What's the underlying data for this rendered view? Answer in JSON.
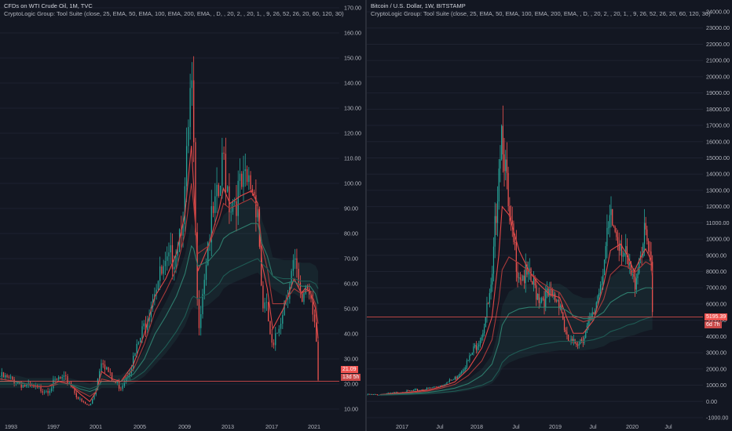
{
  "chart_data": [
    {
      "type": "candlestick",
      "symbol_header": "CFDs on WTI Crude Oil, 1M, TVC",
      "indicator_header": "CryptoLogic Group: Tool Suite (close, 25, EMA, 50, EMA, 100, EMA, 200, EMA, , D, , 20, 2, , 20, 1, , 9, 26, 52, 26, 20, 60, 120, 30)",
      "ylim": [
        5,
        170
      ],
      "y_ticks": [
        "170.00",
        "160.00",
        "150.00",
        "140.00",
        "130.00",
        "120.00",
        "110.00",
        "100.00",
        "90.00",
        "80.00",
        "70.00",
        "60.00",
        "50.00",
        "40.00",
        "30.00",
        "20.00",
        "10.00"
      ],
      "x_ticks": [
        "1993",
        "1997",
        "2001",
        "2005",
        "2009",
        "2013",
        "2017",
        "2021"
      ],
      "last_price": "21.09",
      "countdown": "13d 5h",
      "x": [
        1990.5,
        1992,
        1993,
        1994,
        1995,
        1996,
        1997,
        1998,
        1998.9,
        1999.5,
        2000,
        2001,
        2001.8,
        2003,
        2004,
        2005,
        2006,
        2007,
        2007.8,
        2008.4,
        2008.6,
        2009,
        2010,
        2011,
        2011.4,
        2012,
        2013,
        2014,
        2014.6,
        2015,
        2015.5,
        2016,
        2017,
        2018,
        2018.7,
        2019,
        2019.5,
        2020,
        2020.25
      ],
      "close": [
        23,
        21,
        19,
        18,
        18,
        22,
        21,
        13,
        11,
        19,
        31,
        21,
        19,
        30,
        43,
        60,
        65,
        75,
        95,
        140,
        110,
        42,
        79,
        95,
        110,
        93,
        97,
        100,
        92,
        53,
        48,
        32,
        52,
        68,
        51,
        60,
        58,
        45,
        21
      ],
      "series": [
        {
          "name": "EMA 25",
          "color": "#e04848",
          "values": [
            22,
            21,
            20,
            19,
            19,
            21,
            20,
            16,
            13,
            17,
            25,
            22,
            21,
            28,
            40,
            55,
            62,
            72,
            88,
            115,
            100,
            65,
            75,
            90,
            98,
            92,
            95,
            97,
            92,
            68,
            58,
            42,
            50,
            62,
            56,
            58,
            57,
            50,
            38
          ]
        },
        {
          "name": "EMA 50",
          "color": "#a83a3a",
          "values": [
            22,
            21,
            20,
            19,
            19,
            20,
            20,
            17,
            15,
            17,
            22,
            21,
            21,
            26,
            36,
            49,
            57,
            66,
            80,
            100,
            92,
            72,
            75,
            86,
            92,
            90,
            92,
            94,
            91,
            75,
            66,
            52,
            52,
            58,
            56,
            57,
            57,
            52,
            44
          ]
        },
        {
          "name": "EMA 100",
          "color": "#2e7d6d",
          "values": [
            21,
            21,
            20,
            20,
            20,
            20,
            20,
            18,
            17,
            18,
            21,
            21,
            21,
            24,
            30,
            40,
            47,
            55,
            64,
            75,
            74,
            67,
            69,
            74,
            78,
            80,
            82,
            84,
            84,
            76,
            71,
            63,
            60,
            61,
            59,
            59,
            59,
            56,
            52
          ]
        },
        {
          "name": "EMA 200",
          "color": "#1f5b54",
          "values": [
            20,
            20,
            20,
            20,
            20,
            20,
            20,
            19,
            18,
            19,
            20,
            20,
            20,
            22,
            25,
            30,
            35,
            41,
            47,
            54,
            55,
            54,
            56,
            60,
            63,
            65,
            67,
            69,
            70,
            68,
            66,
            63,
            62,
            62,
            61,
            61,
            61,
            60,
            58
          ]
        }
      ]
    },
    {
      "type": "candlestick",
      "symbol_header": "Bitcoin / U.S. Dollar, 1W, BITSTAMP",
      "indicator_header": "CryptoLogic Group: Tool Suite (close, 25, EMA, 50, EMA, 100, EMA, 200, EMA, , D, , 20, 2, , 20, 1, , 9, 26, 52, 26, 20, 60, 120, 30)",
      "ylim": [
        -1000,
        24000
      ],
      "y_ticks": [
        "24000.00",
        "23000.00",
        "22000.00",
        "21000.00",
        "20000.00",
        "19000.00",
        "18000.00",
        "17000.00",
        "16000.00",
        "15000.00",
        "14000.00",
        "13000.00",
        "12000.00",
        "11000.00",
        "10000.00",
        "9000.00",
        "8000.00",
        "7000.00",
        "6000.00",
        "5000.00",
        "4000.00",
        "3000.00",
        "2000.00",
        "1000.00",
        "0.00",
        "-1000.00"
      ],
      "x_ticks": [
        "2017",
        "Jul",
        "2018",
        "Jul",
        "2019",
        "Jul",
        "2020",
        "Jul"
      ],
      "last_price": "5195.39",
      "countdown": "6d 7h",
      "x": [
        2016.2,
        2016.6,
        2016.9,
        2017.1,
        2017.3,
        2017.5,
        2017.7,
        2017.85,
        2017.95,
        2018.0,
        2018.1,
        2018.25,
        2018.4,
        2018.55,
        2018.7,
        2018.85,
        2018.95,
        2019.05,
        2019.2,
        2019.35,
        2019.5,
        2019.6,
        2019.75,
        2019.85,
        2019.95,
        2020.05,
        2020.12,
        2020.2,
        2020.22
      ],
      "close": [
        420,
        620,
        780,
        1000,
        1400,
        2500,
        4200,
        7000,
        15000,
        17500,
        11000,
        8000,
        7500,
        6500,
        6400,
        6300,
        3800,
        3500,
        4000,
        5300,
        8500,
        11000,
        10000,
        8300,
        7200,
        9500,
        10200,
        8000,
        5200
      ],
      "series": [
        {
          "name": "EMA 25",
          "color": "#e04848",
          "values": [
            420,
            560,
            700,
            900,
            1200,
            2000,
            3300,
            5200,
            9000,
            12000,
            11500,
            9300,
            8000,
            7200,
            6600,
            6400,
            5200,
            4200,
            4200,
            5000,
            7200,
            9300,
            9700,
            9000,
            8000,
            8900,
            9400,
            8700,
            7600
          ]
        },
        {
          "name": "EMA 50",
          "color": "#a83a3a",
          "values": [
            410,
            520,
            640,
            820,
            1050,
            1600,
            2500,
            3800,
            6200,
            8100,
            8900,
            8500,
            8000,
            7400,
            7000,
            6700,
            6000,
            5200,
            4900,
            5100,
            6300,
            7800,
            8400,
            8300,
            7900,
            8300,
            8600,
            8400,
            7900
          ]
        },
        {
          "name": "EMA 100",
          "color": "#2e7d6d",
          "values": [
            400,
            480,
            560,
            670,
            820,
            1100,
            1600,
            2300,
            3600,
            4700,
            5400,
            5700,
            5800,
            5800,
            5800,
            5800,
            5600,
            5300,
            5100,
            5100,
            5500,
            6100,
            6500,
            6700,
            6700,
            6900,
            7000,
            7000,
            6900
          ]
        },
        {
          "name": "EMA 200",
          "color": "#1f5b54",
          "values": [
            390,
            440,
            490,
            550,
            630,
            780,
            1000,
            1300,
            1900,
            2400,
            2800,
            3100,
            3300,
            3500,
            3600,
            3700,
            3700,
            3700,
            3700,
            3800,
            4000,
            4300,
            4500,
            4700,
            4800,
            5000,
            5100,
            5200,
            5200
          ]
        }
      ]
    }
  ]
}
